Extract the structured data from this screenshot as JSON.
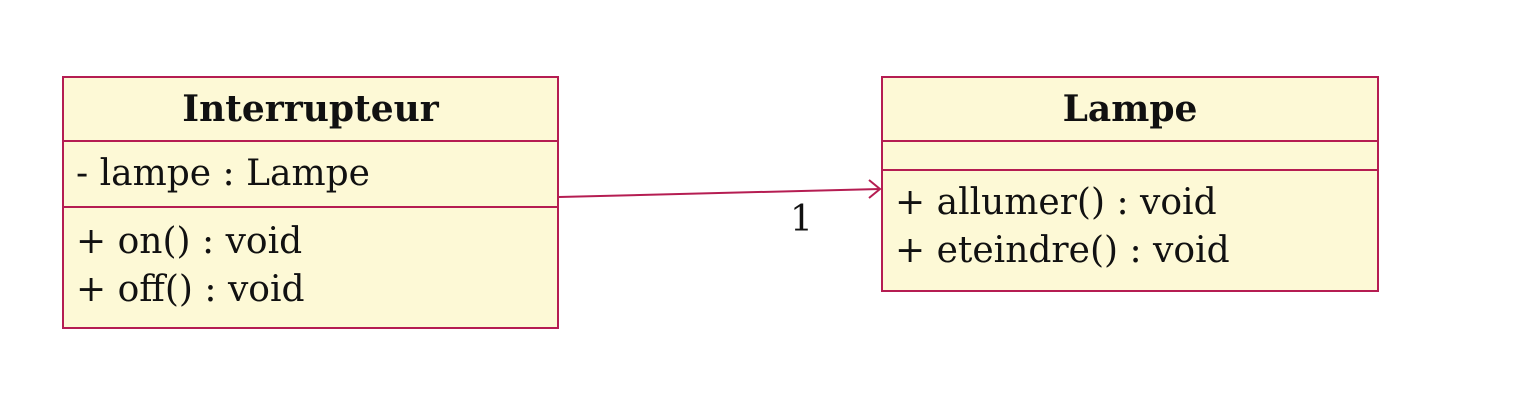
{
  "colors": {
    "class_fill": "#fdf9d6",
    "class_border": "#b51d52",
    "association_line": "#b51d52",
    "text": "#111111"
  },
  "classes": [
    {
      "name": "Interrupteur",
      "attributes": [
        "- lampe : Lampe"
      ],
      "operations": [
        "+ on() : void",
        "+ off() : void"
      ]
    },
    {
      "name": "Lampe",
      "attributes": [],
      "operations": [
        "+ allumer() : void",
        "+ eteindre() : void"
      ]
    }
  ],
  "association": {
    "from": "Interrupteur",
    "to": "Lampe",
    "navigable": "open-arrow",
    "multiplicity": "1"
  }
}
